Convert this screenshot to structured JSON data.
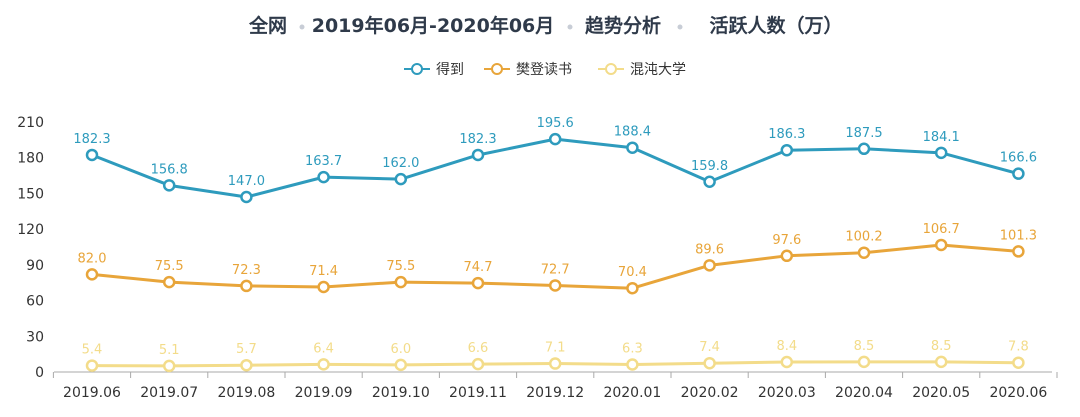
{
  "title": {
    "parts": [
      "全网",
      "2019年06月-2020年06月",
      "趋势分析",
      "活跃人数（万）"
    ]
  },
  "chart_data": {
    "type": "line",
    "title": "全网 • 2019年06月-2020年06月 • 趋势分析 • 活跃人数（万）",
    "xlabel": "",
    "ylabel": "",
    "categories": [
      "2019.06",
      "2019.07",
      "2019.08",
      "2019.09",
      "2019.10",
      "2019.11",
      "2019.12",
      "2020.01",
      "2020.02",
      "2020.03",
      "2020.04",
      "2020.05",
      "2020.06"
    ],
    "ylim": [
      0,
      210
    ],
    "yticks": [
      0,
      30,
      60,
      90,
      120,
      150,
      180,
      210
    ],
    "grid": false,
    "legend_position": "top-center",
    "series": [
      {
        "name": "得到",
        "color": "#2e9bbd",
        "values": [
          182.3,
          156.8,
          147.0,
          163.7,
          162.0,
          182.3,
          195.6,
          188.4,
          159.8,
          186.3,
          187.5,
          184.1,
          166.6
        ],
        "labels": [
          "182.3",
          "156.8",
          "147.0",
          "163.7",
          "162.0",
          "182.3",
          "195.6",
          "188.4",
          "159.8",
          "186.3",
          "187.5",
          "184.1",
          "166.6"
        ]
      },
      {
        "name": "樊登读书",
        "color": "#e8a53a",
        "values": [
          82.0,
          75.5,
          72.3,
          71.4,
          75.5,
          74.7,
          72.7,
          70.4,
          89.6,
          97.6,
          100.2,
          106.7,
          101.3
        ],
        "labels": [
          "82.0",
          "75.5",
          "72.3",
          "71.4",
          "75.5",
          "74.7",
          "72.7",
          "70.4",
          "89.6",
          "97.6",
          "100.2",
          "106.7",
          "101.3"
        ]
      },
      {
        "name": "混沌大学",
        "color": "#f3dc8a",
        "values": [
          5.4,
          5.1,
          5.7,
          6.4,
          6.0,
          6.6,
          7.1,
          6.3,
          7.4,
          8.4,
          8.5,
          8.5,
          7.8
        ],
        "labels": [
          "5.4",
          "5.1",
          "5.7",
          "6.4",
          "6.0",
          "6.6",
          "7.1",
          "6.3",
          "7.4",
          "8.4",
          "8.5",
          "8.5",
          "7.8"
        ]
      }
    ]
  }
}
